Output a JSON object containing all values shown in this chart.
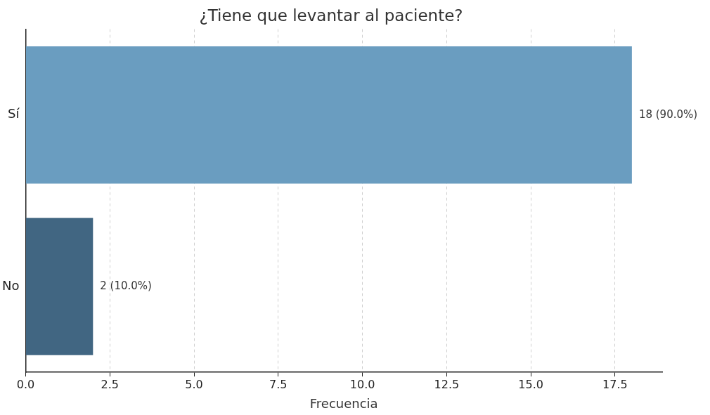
{
  "chart_data": {
    "type": "bar",
    "orientation": "horizontal",
    "title": "¿Tiene que levantar al paciente?",
    "xlabel": "Frecuencia",
    "categories": [
      "Sí",
      "No"
    ],
    "values": [
      18,
      2
    ],
    "colors": [
      "#6a9dc0",
      "#416682"
    ],
    "value_labels": [
      "18 (90.0%)",
      "2 (10.0%)"
    ],
    "xlim": [
      0,
      18.9
    ],
    "xticks": [
      {
        "value": 0,
        "label": "0.0"
      },
      {
        "value": 2.5,
        "label": "2.5"
      },
      {
        "value": 5,
        "label": "5.0"
      },
      {
        "value": 7.5,
        "label": "7.5"
      },
      {
        "value": 10,
        "label": "10.0"
      },
      {
        "value": 12.5,
        "label": "12.5"
      },
      {
        "value": 15,
        "label": "15.0"
      },
      {
        "value": 17.5,
        "label": "17.5"
      }
    ],
    "grid": "x",
    "legend": false
  }
}
